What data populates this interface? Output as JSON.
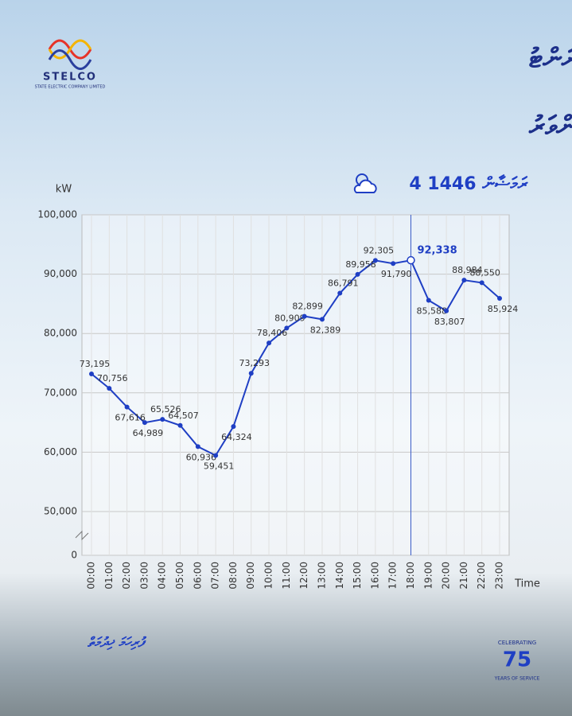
{
  "header": {
    "logo_name": "STELCO",
    "logo_subtitle": "STATE ELECTRIC COMPANY LIMITED",
    "title_line_1": "މާލެ ސަރަހައްދުގައި ކަރަންޓު",
    "title_line_2": "ބޭނުންކުރުމުގައިވާ މިންވަރު",
    "date": "4 ރަމަޟާން 1446"
  },
  "footer": {
    "slogan": "ފުރިހަމަ ޚިދުމަތް",
    "badge_top": "CELEBRATING",
    "badge_number": "75",
    "badge_bottom": "YEARS OF SERVICE"
  },
  "chart_data": {
    "type": "line",
    "y_label": "kW",
    "x_label": "Time",
    "categories": [
      "00:00",
      "01:00",
      "02:00",
      "03:00",
      "04:00",
      "05:00",
      "06:00",
      "07:00",
      "08:00",
      "09:00",
      "10:00",
      "11:00",
      "12:00",
      "13:00",
      "14:00",
      "15:00",
      "16:00",
      "17:00",
      "18:00",
      "19:00",
      "20:00",
      "21:00",
      "22:00",
      "23:00"
    ],
    "series": [
      {
        "name": "kW",
        "color": "#1f3fc4",
        "values": [
          73195,
          70756,
          67616,
          64989,
          65526,
          64507,
          60936,
          59451,
          64324,
          73293,
          78406,
          80909,
          82899,
          82389,
          86791,
          89958,
          92305,
          91790,
          92338,
          85588,
          83807,
          88984,
          88550,
          85924
        ],
        "value_labels": [
          "73,195",
          "70,756",
          "67,616",
          "64,989",
          "65,526",
          "64,507",
          "60,936",
          "59,451",
          "64,324",
          "73,293",
          "78,406",
          "80,909",
          "82,899",
          "82,389",
          "86,791",
          "89,958",
          "92,305",
          "91,790",
          "92,338",
          "85,588",
          "83,807",
          "88,984",
          "88,550",
          "85,924"
        ]
      }
    ],
    "ylim": [
      0,
      100000
    ],
    "yticks": [
      0,
      {
        "value": 50000,
        "label": "50,000"
      },
      {
        "value": 60000,
        "label": "60,000"
      },
      {
        "value": 70000,
        "label": "70,000"
      },
      {
        "value": 80000,
        "label": "80,000"
      },
      {
        "value": 90000,
        "label": "90,000"
      },
      {
        "value": 100000,
        "label": "100,000"
      }
    ],
    "axis_break": true,
    "grid": true,
    "highlight": "18:00"
  }
}
